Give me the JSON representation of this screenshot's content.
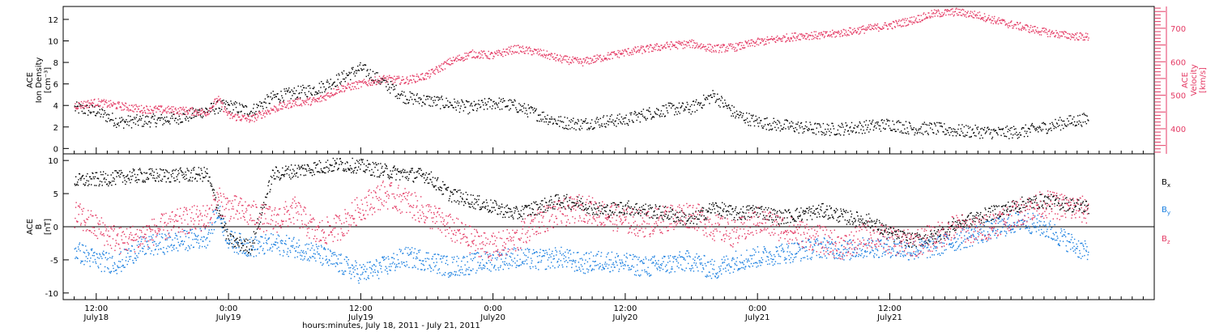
{
  "colors": {
    "black": "#000000",
    "red": "#e43a64",
    "blue": "#1a7fe0"
  },
  "chart_data": [
    {
      "type": "scatter",
      "panel": "ion-density-velocity",
      "y_title_lines": [
        "ACE",
        "Ion Density",
        "[cm⁻³]"
      ],
      "y2_title_lines": [
        "ACE",
        "Velocity",
        "[km/s]"
      ],
      "ylim": [
        -0.5,
        13.2
      ],
      "yticks": [
        0,
        2,
        4,
        6,
        8,
        10,
        12
      ],
      "y2lim": [
        325,
        765
      ],
      "y2ticks": [
        400,
        500,
        600,
        700
      ],
      "xlim": [
        -3,
        96
      ],
      "series": [
        {
          "color": "black",
          "axis": "left",
          "x": [
            -2,
            0,
            2,
            4,
            6,
            8,
            10,
            11,
            12,
            14,
            16,
            18,
            20,
            22,
            24,
            26,
            28,
            30,
            32,
            34,
            36,
            38,
            40,
            42,
            44,
            46,
            48,
            50,
            52,
            54,
            56,
            58,
            60,
            62,
            64,
            66,
            68,
            70,
            72,
            74,
            76,
            78,
            80,
            82,
            84,
            86,
            88,
            90
          ],
          "y": [
            3.8,
            3.5,
            2.5,
            2.6,
            2.7,
            3.0,
            3.6,
            3.9,
            4.0,
            3.5,
            4.8,
            5.2,
            5.6,
            6.5,
            7.5,
            6.2,
            4.8,
            4.5,
            4.2,
            3.8,
            4.3,
            4.0,
            3.2,
            2.5,
            2.3,
            2.6,
            2.7,
            3.3,
            3.7,
            3.8,
            5.0,
            3.2,
            2.5,
            2.2,
            2.0,
            1.8,
            1.9,
            2.1,
            2.3,
            1.9,
            1.9,
            1.7,
            1.6,
            1.5,
            1.6,
            2.0,
            2.5,
            2.8
          ]
        },
        {
          "color": "red",
          "axis": "right",
          "x": [
            -2,
            0,
            2,
            4,
            6,
            8,
            10,
            11,
            12,
            14,
            16,
            18,
            20,
            22,
            24,
            26,
            28,
            30,
            32,
            34,
            36,
            38,
            40,
            42,
            44,
            46,
            48,
            50,
            52,
            54,
            56,
            58,
            60,
            62,
            64,
            66,
            68,
            70,
            72,
            74,
            76,
            78,
            80,
            82,
            84,
            86,
            88,
            90
          ],
          "y": [
            470,
            480,
            470,
            460,
            458,
            455,
            450,
            490,
            440,
            430,
            460,
            480,
            485,
            520,
            535,
            550,
            545,
            560,
            600,
            625,
            620,
            640,
            630,
            610,
            600,
            615,
            630,
            640,
            650,
            655,
            640,
            645,
            660,
            670,
            680,
            680,
            690,
            700,
            710,
            725,
            745,
            750,
            740,
            720,
            705,
            690,
            680,
            675
          ]
        }
      ]
    },
    {
      "type": "scatter",
      "panel": "magnetic-field",
      "y_title_lines": [
        "ACE",
        "B",
        "[nT]"
      ],
      "ylim": [
        -11,
        11
      ],
      "yticks": [
        -10,
        -5,
        0,
        5,
        10
      ],
      "xlim": [
        -3,
        96
      ],
      "xticks": [
        0,
        24,
        48,
        72,
        96,
        120,
        144,
        168,
        192,
        216,
        240,
        264
      ],
      "legend": [
        "Bx",
        "By",
        "Bz"
      ],
      "xlabel": "hours:minutes, July 18, 2011 - July 21, 2011",
      "series": [
        {
          "name": "Bx",
          "color": "black",
          "x": [
            -2,
            0,
            2,
            4,
            6,
            8,
            10,
            11,
            12,
            14,
            16,
            18,
            20,
            22,
            24,
            26,
            28,
            30,
            32,
            34,
            36,
            38,
            40,
            42,
            44,
            46,
            48,
            50,
            52,
            54,
            56,
            58,
            60,
            62,
            64,
            66,
            68,
            70,
            72,
            74,
            76,
            78,
            80,
            82,
            84,
            86,
            88,
            90
          ],
          "y": [
            7.0,
            7.2,
            7.5,
            7.8,
            7.8,
            7.9,
            8.0,
            3.0,
            -2.0,
            -3.0,
            8.0,
            8.5,
            9.0,
            9.5,
            9.2,
            8.5,
            8.0,
            7.8,
            5.0,
            4.0,
            3.0,
            2.0,
            3.0,
            4.0,
            3.5,
            2.5,
            3.0,
            2.5,
            2.0,
            1.0,
            3.0,
            2.0,
            2.5,
            1.5,
            2.0,
            2.5,
            1.5,
            1.0,
            -1.0,
            -2.0,
            -1.5,
            0.5,
            1.5,
            2.5,
            3.5,
            4.0,
            3.5,
            3.0
          ]
        },
        {
          "name": "By",
          "color": "blue",
          "x": [
            -2,
            0,
            2,
            4,
            6,
            8,
            10,
            11,
            12,
            14,
            16,
            18,
            20,
            22,
            24,
            26,
            28,
            30,
            32,
            34,
            36,
            38,
            40,
            42,
            44,
            46,
            48,
            50,
            52,
            54,
            56,
            58,
            60,
            62,
            64,
            66,
            68,
            70,
            72,
            74,
            76,
            78,
            80,
            82,
            84,
            86,
            88,
            90
          ],
          "y": [
            -3.5,
            -5.0,
            -5.5,
            -3.0,
            -2.5,
            -2.0,
            -1.5,
            2.5,
            -2.0,
            -3.0,
            -2.5,
            -3.0,
            -4.0,
            -5.5,
            -7.0,
            -6.0,
            -4.5,
            -5.0,
            -6.0,
            -5.5,
            -5.0,
            -4.5,
            -5.0,
            -4.5,
            -5.5,
            -5.0,
            -5.5,
            -6.0,
            -5.5,
            -5.0,
            -6.5,
            -5.0,
            -4.5,
            -4.0,
            -3.5,
            -3.0,
            -3.5,
            -3.0,
            -3.0,
            -3.5,
            -3.0,
            -2.0,
            -1.0,
            0.0,
            1.0,
            0.0,
            -2.0,
            -4.0
          ]
        },
        {
          "name": "Bz",
          "color": "red",
          "x": [
            -2,
            0,
            2,
            4,
            6,
            8,
            10,
            11,
            12,
            14,
            16,
            18,
            20,
            22,
            24,
            26,
            28,
            30,
            32,
            34,
            36,
            38,
            40,
            42,
            44,
            46,
            48,
            50,
            52,
            54,
            56,
            58,
            60,
            62,
            64,
            66,
            68,
            70,
            72,
            74,
            76,
            78,
            80,
            82,
            84,
            86,
            88,
            90
          ],
          "y": [
            2.0,
            0.0,
            -2.0,
            -1.5,
            0.0,
            1.0,
            1.5,
            4.0,
            3.0,
            2.0,
            1.0,
            2.5,
            -1.0,
            0.0,
            3.0,
            5.0,
            4.0,
            2.0,
            0.0,
            -2.0,
            -3.0,
            -2.0,
            1.0,
            2.0,
            3.0,
            2.0,
            1.0,
            0.5,
            1.5,
            2.0,
            0.0,
            -1.0,
            1.0,
            0.0,
            -1.0,
            -2.0,
            -3.0,
            -1.0,
            -2.0,
            -2.5,
            -1.5,
            0.0,
            -0.5,
            1.0,
            2.5,
            3.5,
            3.0,
            2.5
          ]
        }
      ]
    }
  ],
  "x_ticks": [
    {
      "x": 0,
      "time": "12:00",
      "date": "July18"
    },
    {
      "x": 12,
      "time": "0:00",
      "date": "July19"
    },
    {
      "x": 24,
      "time": "12:00",
      "date": "July19"
    },
    {
      "x": 36,
      "time": "0:00",
      "date": "July20"
    },
    {
      "x": 48,
      "time": "12:00",
      "date": "July20"
    },
    {
      "x": 60,
      "time": "0:00",
      "date": "July21"
    },
    {
      "x": 72,
      "time": "12:00",
      "date": "July21"
    }
  ],
  "xlabel": "hours:minutes, July 18, 2011 - July 21, 2011"
}
